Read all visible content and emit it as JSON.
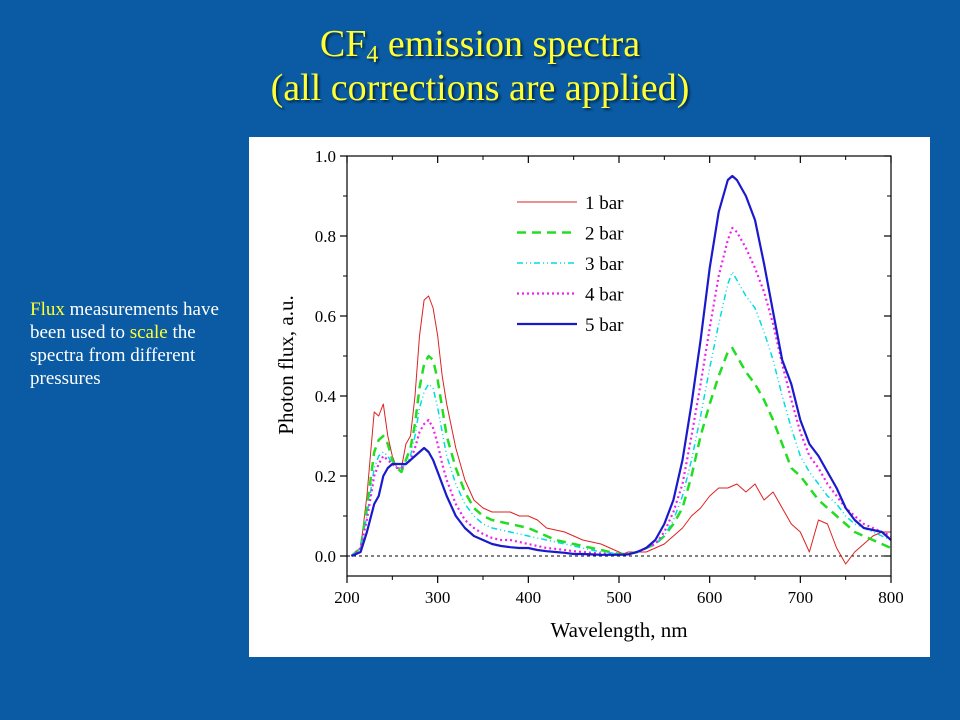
{
  "slide": {
    "title_prefix": "CF",
    "title_sub": "4",
    "title_suffix": " emission spectra",
    "title_line2": "(all corrections are applied)",
    "note_parts": [
      "Flux",
      " measurements have been used to ",
      "scale",
      " the spectra from different pressures"
    ],
    "text_color": "#ffffff",
    "highlight_color": "#ffff33",
    "background": "#0a5ba3"
  },
  "chart_data": {
    "type": "line",
    "title": "",
    "xlabel": "Wavelength, nm",
    "ylabel": "Photon flux, a.u.",
    "xlim": [
      200,
      800
    ],
    "ylim": [
      -0.05,
      1.0
    ],
    "xticks": [
      "200",
      "300",
      "400",
      "500",
      "600",
      "700",
      "800"
    ],
    "yticks": [
      "0.0",
      "0.2",
      "0.4",
      "0.6",
      "0.8",
      "1.0"
    ],
    "legend_position": "top-left",
    "reference_line": {
      "y": 0.0,
      "style": "dotted"
    },
    "series": [
      {
        "name": "1 bar",
        "color": "#dd2222",
        "dash": "",
        "width": 1,
        "x": [
          205,
          215,
          222,
          230,
          235,
          240,
          245,
          250,
          255,
          260,
          265,
          270,
          275,
          280,
          285,
          290,
          295,
          300,
          305,
          310,
          320,
          330,
          340,
          350,
          360,
          370,
          380,
          390,
          400,
          410,
          420,
          430,
          440,
          450,
          460,
          470,
          480,
          490,
          500,
          505,
          510,
          520,
          530,
          540,
          550,
          560,
          570,
          580,
          590,
          600,
          610,
          620,
          630,
          640,
          645,
          650,
          655,
          660,
          670,
          680,
          690,
          700,
          710,
          715,
          720,
          730,
          740,
          750,
          760,
          770,
          780,
          790,
          800
        ],
        "y": [
          0.0,
          0.02,
          0.15,
          0.36,
          0.35,
          0.38,
          0.3,
          0.25,
          0.22,
          0.22,
          0.28,
          0.3,
          0.4,
          0.55,
          0.64,
          0.65,
          0.62,
          0.55,
          0.45,
          0.38,
          0.27,
          0.19,
          0.14,
          0.12,
          0.11,
          0.11,
          0.11,
          0.1,
          0.1,
          0.09,
          0.07,
          0.065,
          0.06,
          0.05,
          0.04,
          0.035,
          0.03,
          0.02,
          0.01,
          0.005,
          0.01,
          0.01,
          0.01,
          0.02,
          0.03,
          0.05,
          0.07,
          0.1,
          0.12,
          0.15,
          0.17,
          0.17,
          0.18,
          0.16,
          0.17,
          0.18,
          0.16,
          0.14,
          0.16,
          0.12,
          0.08,
          0.06,
          0.01,
          0.05,
          0.09,
          0.08,
          0.02,
          -0.02,
          0.01,
          0.03,
          0.05,
          0.06,
          0.06
        ]
      },
      {
        "name": "2 bar",
        "color": "#22dd22",
        "dash": "9 6",
        "width": 2.5,
        "x": [
          205,
          215,
          222,
          230,
          235,
          240,
          245,
          250,
          255,
          260,
          265,
          270,
          275,
          280,
          285,
          290,
          295,
          300,
          305,
          310,
          320,
          330,
          340,
          350,
          360,
          370,
          380,
          390,
          400,
          410,
          420,
          430,
          440,
          450,
          460,
          470,
          480,
          490,
          500,
          510,
          520,
          530,
          540,
          550,
          560,
          570,
          580,
          590,
          600,
          610,
          620,
          625,
          630,
          640,
          650,
          660,
          670,
          680,
          690,
          700,
          710,
          720,
          730,
          740,
          750,
          760,
          770,
          780,
          790,
          800
        ],
        "y": [
          0.0,
          0.02,
          0.12,
          0.26,
          0.29,
          0.3,
          0.28,
          0.24,
          0.22,
          0.21,
          0.24,
          0.27,
          0.33,
          0.42,
          0.48,
          0.5,
          0.49,
          0.44,
          0.37,
          0.3,
          0.22,
          0.16,
          0.12,
          0.1,
          0.09,
          0.085,
          0.08,
          0.075,
          0.07,
          0.06,
          0.05,
          0.04,
          0.035,
          0.03,
          0.025,
          0.02,
          0.015,
          0.01,
          0.005,
          0.005,
          0.01,
          0.02,
          0.03,
          0.05,
          0.08,
          0.12,
          0.2,
          0.3,
          0.38,
          0.45,
          0.51,
          0.52,
          0.5,
          0.46,
          0.43,
          0.39,
          0.34,
          0.28,
          0.22,
          0.2,
          0.17,
          0.14,
          0.12,
          0.1,
          0.08,
          0.06,
          0.05,
          0.04,
          0.03,
          0.02
        ]
      },
      {
        "name": "3 bar",
        "color": "#00dddd",
        "dash": "6 3 1 3 1 3",
        "width": 1.5,
        "x": [
          205,
          215,
          222,
          230,
          235,
          240,
          245,
          250,
          255,
          260,
          265,
          270,
          275,
          280,
          285,
          290,
          295,
          300,
          305,
          310,
          320,
          330,
          340,
          350,
          360,
          370,
          380,
          390,
          400,
          410,
          420,
          430,
          440,
          450,
          460,
          470,
          480,
          490,
          500,
          510,
          520,
          530,
          540,
          550,
          560,
          570,
          580,
          590,
          600,
          610,
          620,
          625,
          630,
          640,
          650,
          660,
          670,
          680,
          690,
          700,
          710,
          720,
          730,
          740,
          750,
          760,
          770,
          780,
          790,
          800
        ],
        "y": [
          0.0,
          0.02,
          0.1,
          0.22,
          0.25,
          0.26,
          0.25,
          0.23,
          0.22,
          0.22,
          0.23,
          0.25,
          0.3,
          0.37,
          0.41,
          0.43,
          0.42,
          0.37,
          0.31,
          0.25,
          0.18,
          0.13,
          0.1,
          0.08,
          0.07,
          0.065,
          0.06,
          0.055,
          0.05,
          0.045,
          0.04,
          0.035,
          0.03,
          0.025,
          0.02,
          0.015,
          0.01,
          0.008,
          0.005,
          0.005,
          0.01,
          0.02,
          0.03,
          0.05,
          0.09,
          0.15,
          0.24,
          0.35,
          0.47,
          0.58,
          0.68,
          0.71,
          0.69,
          0.65,
          0.62,
          0.56,
          0.49,
          0.4,
          0.32,
          0.25,
          0.21,
          0.18,
          0.15,
          0.13,
          0.1,
          0.08,
          0.07,
          0.06,
          0.05,
          0.04
        ]
      },
      {
        "name": "4 bar",
        "color": "#ee22ee",
        "dash": "2 3",
        "width": 2.2,
        "x": [
          205,
          215,
          222,
          230,
          235,
          240,
          245,
          250,
          255,
          260,
          265,
          270,
          275,
          280,
          285,
          290,
          295,
          300,
          305,
          310,
          320,
          330,
          340,
          350,
          360,
          370,
          380,
          390,
          400,
          410,
          420,
          430,
          440,
          450,
          460,
          470,
          480,
          490,
          500,
          510,
          520,
          530,
          540,
          550,
          560,
          570,
          580,
          590,
          600,
          610,
          620,
          625,
          630,
          640,
          650,
          660,
          670,
          680,
          690,
          700,
          710,
          720,
          730,
          740,
          750,
          760,
          770,
          780,
          790,
          800
        ],
        "y": [
          0.0,
          0.02,
          0.09,
          0.2,
          0.23,
          0.25,
          0.24,
          0.23,
          0.22,
          0.22,
          0.23,
          0.24,
          0.27,
          0.31,
          0.33,
          0.34,
          0.32,
          0.28,
          0.23,
          0.19,
          0.13,
          0.09,
          0.07,
          0.055,
          0.045,
          0.04,
          0.04,
          0.035,
          0.03,
          0.025,
          0.02,
          0.018,
          0.015,
          0.012,
          0.01,
          0.008,
          0.006,
          0.005,
          0.004,
          0.004,
          0.01,
          0.02,
          0.03,
          0.06,
          0.11,
          0.18,
          0.3,
          0.43,
          0.57,
          0.7,
          0.79,
          0.82,
          0.81,
          0.77,
          0.72,
          0.66,
          0.58,
          0.48,
          0.39,
          0.31,
          0.25,
          0.22,
          0.18,
          0.15,
          0.12,
          0.1,
          0.08,
          0.07,
          0.06,
          0.05
        ]
      },
      {
        "name": "5 bar",
        "color": "#1a1acc",
        "dash": "",
        "width": 2.2,
        "x": [
          205,
          215,
          222,
          230,
          235,
          240,
          245,
          250,
          255,
          260,
          265,
          270,
          275,
          280,
          285,
          290,
          295,
          300,
          305,
          310,
          320,
          330,
          340,
          350,
          360,
          370,
          380,
          390,
          400,
          410,
          420,
          430,
          440,
          450,
          460,
          470,
          480,
          490,
          500,
          510,
          520,
          530,
          540,
          550,
          560,
          570,
          580,
          590,
          600,
          610,
          620,
          625,
          630,
          640,
          650,
          660,
          670,
          680,
          690,
          700,
          710,
          720,
          730,
          740,
          750,
          760,
          770,
          780,
          790,
          800
        ],
        "y": [
          0.0,
          0.01,
          0.06,
          0.13,
          0.15,
          0.2,
          0.22,
          0.23,
          0.23,
          0.23,
          0.23,
          0.24,
          0.25,
          0.26,
          0.27,
          0.26,
          0.24,
          0.21,
          0.18,
          0.15,
          0.1,
          0.07,
          0.05,
          0.04,
          0.03,
          0.025,
          0.022,
          0.02,
          0.02,
          0.015,
          0.012,
          0.01,
          0.008,
          0.005,
          0.005,
          0.004,
          0.003,
          0.003,
          0.003,
          0.004,
          0.01,
          0.02,
          0.04,
          0.08,
          0.14,
          0.24,
          0.38,
          0.54,
          0.72,
          0.86,
          0.94,
          0.95,
          0.94,
          0.9,
          0.84,
          0.73,
          0.61,
          0.49,
          0.43,
          0.34,
          0.28,
          0.25,
          0.21,
          0.17,
          0.12,
          0.09,
          0.07,
          0.065,
          0.06,
          0.04
        ]
      }
    ]
  }
}
